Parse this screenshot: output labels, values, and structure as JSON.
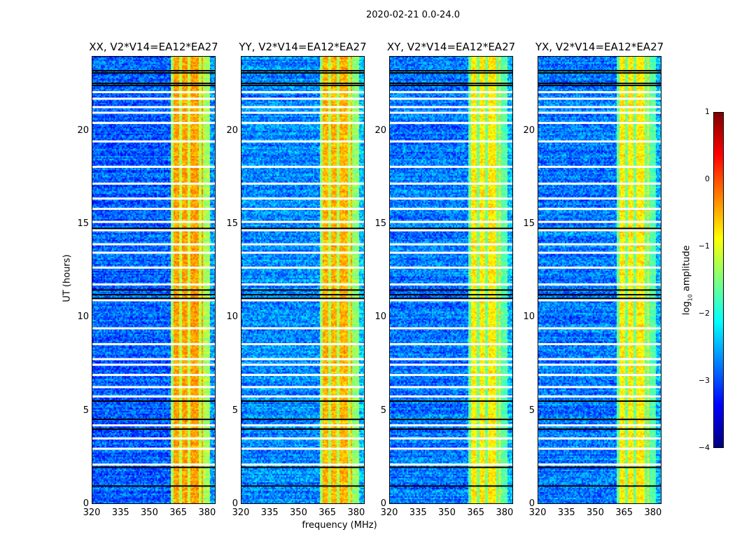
{
  "chart_data": {
    "type": "heatmap",
    "title": "2020-02-21 0.0-24.0",
    "xlabel": "frequency (MHz)",
    "ylabel": "UT (hours)",
    "xlim": [
      320,
      384.4
    ],
    "ylim": [
      0,
      24
    ],
    "xticks": [
      "320",
      "335",
      "350",
      "365",
      "380"
    ],
    "yticks": [
      "0",
      "5",
      "10",
      "15",
      "20"
    ],
    "colorbar": {
      "label_main": "log",
      "label_sub": "10",
      "label_rest": " amplitude",
      "range": [
        -4,
        1
      ],
      "ticks": [
        "1",
        "0",
        "−1",
        "−2",
        "−3",
        "−4"
      ],
      "colormap": "jet"
    },
    "panels": [
      {
        "title": "XX, V2*V14=EA12*EA27",
        "band_level": -0.4,
        "bg_level": -2.9
      },
      {
        "title": "YY, V2*V14=EA12*EA27",
        "band_level": -0.5,
        "bg_level": -2.7
      },
      {
        "title": "XY, V2*V14=EA12*EA27",
        "band_level": -0.8,
        "bg_level": -2.8
      },
      {
        "title": "YX, V2*V14=EA12*EA27",
        "band_level": -0.8,
        "bg_level": -2.8
      }
    ],
    "rfi_band_mhz": [
      360.4,
      380.4
    ],
    "band_separators_mhz": [
      365.5,
      370.2,
      375.6
    ],
    "flagged_rows_hours": [
      22.1,
      21.75,
      21.3,
      21.0,
      20.45,
      19.46,
      18.1,
      17.2,
      16.4,
      15.85,
      15.15,
      14.7,
      13.95,
      13.5,
      12.7,
      11.8,
      10.95,
      9.45,
      8.6,
      7.8,
      7.5,
      6.95,
      6.3,
      5.8,
      4.25,
      3.55,
      3.0,
      2.15
    ],
    "zero_rows_hours": [
      23.25,
      23.13,
      22.57,
      22.46,
      14.8,
      11.5,
      11.25,
      11.05,
      5.55,
      4.57,
      4.05,
      2.0,
      1.0
    ]
  }
}
